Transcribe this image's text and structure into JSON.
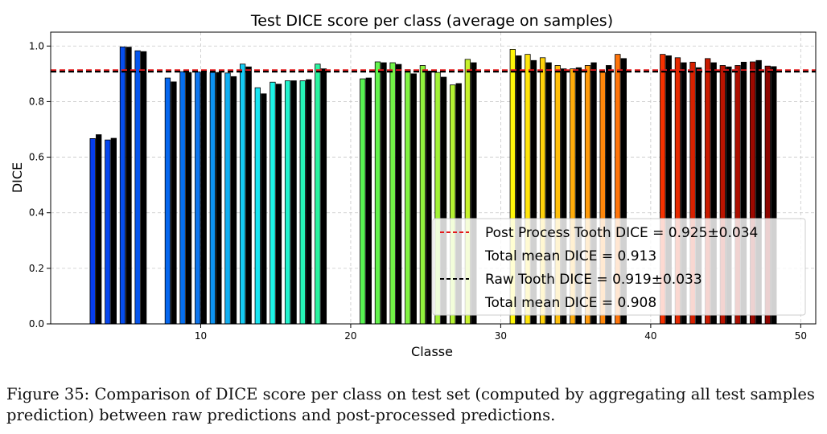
{
  "chart_data": {
    "type": "bar",
    "title": "Test DICE score per class (average on samples)",
    "xlabel": "Classe",
    "ylabel": "DICE",
    "xlim": [
      0,
      51
    ],
    "ylim": [
      0,
      1.05
    ],
    "xticks": [
      10,
      20,
      30,
      40,
      50
    ],
    "yticks": [
      0.0,
      0.2,
      0.4,
      0.6,
      0.8,
      1.0
    ],
    "grid": true,
    "legend_position": "lower-right",
    "series": [
      {
        "name": "Post Process",
        "x": [
          3,
          4,
          5,
          6,
          8,
          9,
          10,
          11,
          12,
          13,
          14,
          15,
          16,
          17,
          18,
          21,
          22,
          23,
          24,
          25,
          26,
          27,
          28,
          31,
          32,
          33,
          34,
          35,
          36,
          37,
          38,
          41,
          42,
          43,
          44,
          45,
          46,
          47,
          48
        ],
        "values": [
          0.667,
          0.662,
          0.997,
          0.983,
          0.885,
          0.908,
          0.907,
          0.905,
          0.903,
          0.935,
          0.85,
          0.87,
          0.875,
          0.875,
          0.935,
          0.882,
          0.943,
          0.94,
          0.915,
          0.93,
          0.905,
          0.86,
          0.952,
          0.988,
          0.97,
          0.958,
          0.93,
          0.918,
          0.93,
          0.905,
          0.97,
          0.97,
          0.958,
          0.942,
          0.955,
          0.93,
          0.93,
          0.943,
          0.928
        ]
      },
      {
        "name": "Raw",
        "x": [
          3,
          4,
          5,
          6,
          8,
          9,
          10,
          11,
          12,
          13,
          14,
          15,
          16,
          17,
          18,
          21,
          22,
          23,
          24,
          25,
          26,
          27,
          28,
          31,
          32,
          33,
          34,
          35,
          36,
          37,
          38,
          41,
          42,
          43,
          44,
          45,
          46,
          47,
          48
        ],
        "values": [
          0.681,
          0.668,
          0.996,
          0.98,
          0.871,
          0.905,
          0.905,
          0.905,
          0.89,
          0.925,
          0.828,
          0.863,
          0.875,
          0.879,
          0.918,
          0.885,
          0.94,
          0.934,
          0.9,
          0.91,
          0.888,
          0.865,
          0.94,
          0.965,
          0.948,
          0.94,
          0.918,
          0.922,
          0.94,
          0.93,
          0.955,
          0.965,
          0.94,
          0.922,
          0.94,
          0.925,
          0.942,
          0.948,
          0.926
        ]
      }
    ],
    "reference_lines": [
      {
        "value": 0.913,
        "color": "#e41a1c",
        "style": "dashed"
      },
      {
        "value": 0.908,
        "color": "#000000",
        "style": "dashed"
      }
    ],
    "legend": [
      {
        "label": "Post Process Tooth DICE = 0.925±0.034",
        "sub": "Total mean DICE = 0.913",
        "color": "#e41a1c"
      },
      {
        "label": "Raw Tooth DICE = 0.919±0.033",
        "sub": "Total mean DICE = 0.908",
        "color": "#000000"
      }
    ]
  },
  "caption": "Figure 35: Comparison of DICE score per class on test set (computed by aggregating all test samples prediction) between raw predictions and post-processed predictions."
}
